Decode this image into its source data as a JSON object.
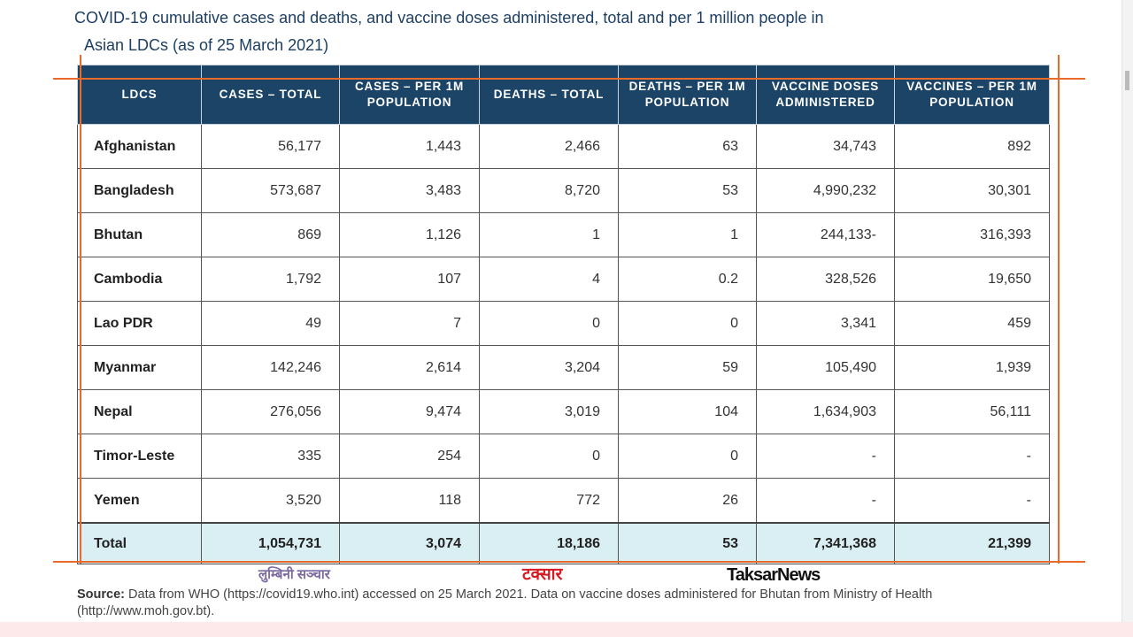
{
  "title": {
    "line1": "COVID-19 cumulative cases and deaths, and vaccine doses administered, total and per 1 million people in",
    "line2": "Asian LDCs (as of 25 March 2021)"
  },
  "table": {
    "headers": [
      "LDCS",
      "CASES – TOTAL",
      "CASES – PER 1M POPULATION",
      "DEATHS – TOTAL",
      "DEATHS – PER 1M POPULATION",
      "VACCINE DOSES ADMINISTERED",
      "VACCINES – PER 1M POPULATION"
    ],
    "rows": [
      [
        "Afghanistan",
        "56,177",
        "1,443",
        "2,466",
        "63",
        "34,743",
        "892"
      ],
      [
        "Bangladesh",
        "573,687",
        "3,483",
        "8,720",
        "53",
        "4,990,232",
        "30,301"
      ],
      [
        "Bhutan",
        "869",
        "1,126",
        "1",
        "1",
        "244,133-",
        "316,393"
      ],
      [
        "Cambodia",
        "1,792",
        "107",
        "4",
        "0.2",
        "328,526",
        "19,650"
      ],
      [
        "Lao PDR",
        "49",
        "7",
        "0",
        "0",
        "3,341",
        "459"
      ],
      [
        "Myanmar",
        "142,246",
        "2,614",
        "3,204",
        "59",
        "105,490",
        "1,939"
      ],
      [
        "Nepal",
        "276,056",
        "9,474",
        "3,019",
        "104",
        "1,634,903",
        "56,111"
      ],
      [
        "Timor-Leste",
        "335",
        "254",
        "0",
        "0",
        "-",
        "-"
      ],
      [
        "Yemen",
        "3,520",
        "118",
        "772",
        "26",
        "-",
        "-"
      ]
    ],
    "total": [
      "Total",
      "1,054,731",
      "3,074",
      "18,186",
      "53",
      "7,341,368",
      "21,399"
    ]
  },
  "source": {
    "label": "Source:",
    "text": "Data from WHO (https://covid19.who.int) accessed on 25 March 2021. Data on vaccine doses administered for Bhutan from Ministry of Health (http://www.moh.gov.bt)."
  },
  "logos": [
    "लुम्बिनी सञ्चार",
    "टक्सार",
    "TaksarNews"
  ]
}
